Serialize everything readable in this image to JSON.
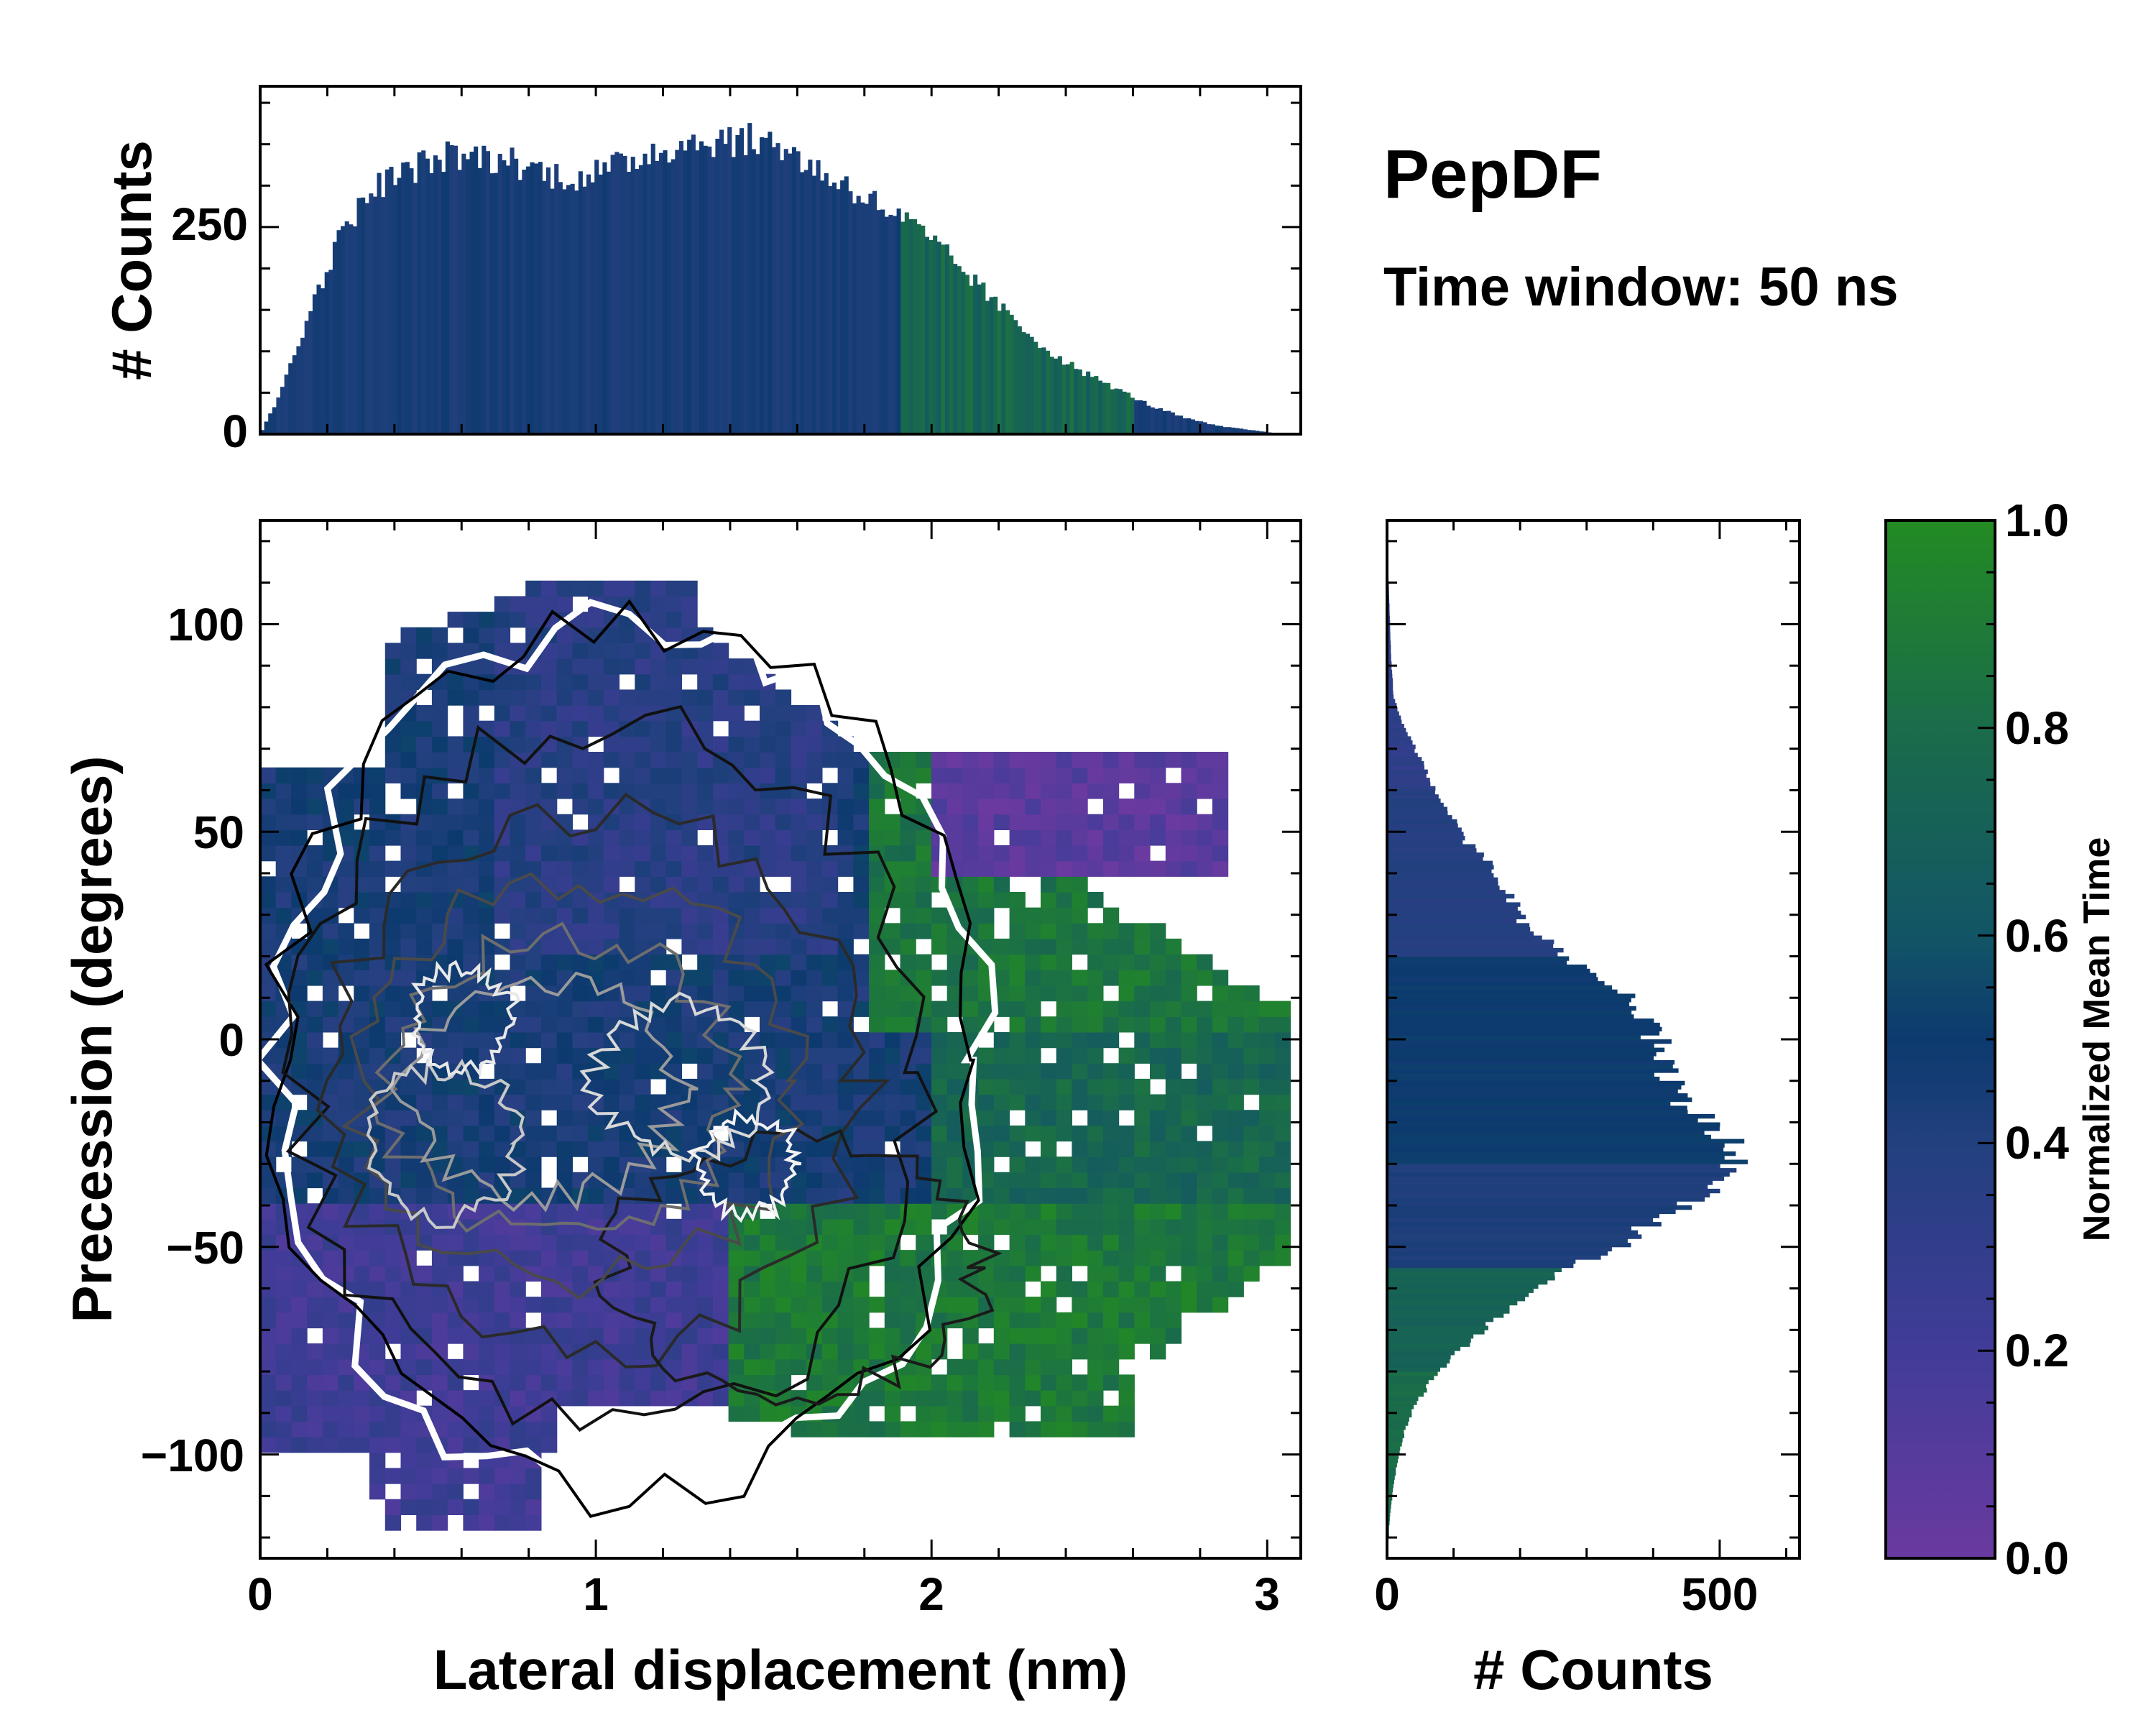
{
  "title": "PepDF",
  "subtitle": "Time window: 50 ns",
  "colors": {
    "purple": "#6a3aa0",
    "navy": "#0c3a6e",
    "blue": "#22407e",
    "green": "#238b23",
    "background": "#ffffff"
  },
  "chart_data": [
    {
      "type": "heatmap",
      "name": "main",
      "xlabel": "Lateral displacement (nm)",
      "ylabel": "Precession (degrees)",
      "xlim": [
        0,
        3.1
      ],
      "ylim": [
        -125,
        125
      ],
      "xticks": [
        0,
        1,
        2,
        3
      ],
      "xtick_labels": [
        "0",
        "1",
        "2",
        "3"
      ],
      "yticks": [
        -100,
        -50,
        0,
        50,
        100
      ],
      "ytick_labels": [
        "−100",
        "−50",
        "0",
        "50",
        "100"
      ],
      "contours": "black-to-white density contour lines overlaid"
    },
    {
      "type": "bar",
      "name": "top-histogram",
      "ylabel": "# Counts",
      "ylim": [
        0,
        420
      ],
      "yticks": [
        0,
        250
      ],
      "ytick_labels": [
        "0",
        "250"
      ],
      "xlim": [
        0,
        3.1
      ],
      "x": [
        0.05,
        0.15,
        0.25,
        0.35,
        0.45,
        0.55,
        0.65,
        0.75,
        0.85,
        0.95,
        1.05,
        1.15,
        1.25,
        1.35,
        1.45,
        1.55,
        1.65,
        1.75,
        1.85,
        1.95,
        2.05,
        2.15,
        2.25,
        2.35,
        2.45,
        2.55,
        2.65,
        2.75,
        2.85,
        2.95
      ],
      "values": [
        40,
        150,
        250,
        300,
        320,
        335,
        335,
        330,
        315,
        310,
        320,
        340,
        350,
        355,
        355,
        350,
        320,
        300,
        275,
        250,
        215,
        175,
        135,
        100,
        75,
        55,
        35,
        20,
        10,
        5
      ]
    },
    {
      "type": "bar",
      "name": "right-histogram",
      "orientation": "horizontal",
      "xlabel": "# Counts",
      "xlim": [
        0,
        620
      ],
      "xticks": [
        0,
        500
      ],
      "xtick_labels": [
        "0",
        "500"
      ],
      "ylim": [
        -125,
        125
      ],
      "y": [
        -117.5,
        -112.5,
        -107.5,
        -102.5,
        -97.5,
        -92.5,
        -87.5,
        -82.5,
        -77.5,
        -72.5,
        -67.5,
        -62.5,
        -57.5,
        -52.5,
        -47.5,
        -42.5,
        -37.5,
        -32.5,
        -27.5,
        -22.5,
        -17.5,
        -12.5,
        -7.5,
        -2.5,
        2.5,
        7.5,
        12.5,
        17.5,
        22.5,
        27.5,
        32.5,
        37.5,
        42.5,
        47.5,
        52.5,
        57.5,
        62.5,
        67.5,
        72.5,
        77.5,
        82.5,
        87.5,
        92.5,
        97.5,
        102.5,
        107.5,
        112.5,
        117.5
      ],
      "values": [
        3,
        6,
        10,
        15,
        22,
        30,
        45,
        65,
        95,
        125,
        160,
        200,
        255,
        310,
        370,
        420,
        470,
        510,
        530,
        500,
        460,
        440,
        420,
        410,
        400,
        380,
        340,
        290,
        250,
        210,
        190,
        170,
        150,
        120,
        100,
        80,
        65,
        50,
        35,
        20,
        10,
        8,
        6,
        5,
        4,
        3,
        2,
        2
      ]
    },
    {
      "type": "colorbar",
      "name": "colorbar",
      "label": "Normalized Mean Time",
      "range": [
        0.0,
        1.0
      ],
      "ticks": [
        0.0,
        0.2,
        0.4,
        0.6,
        0.8,
        1.0
      ],
      "tick_labels": [
        "0.0",
        "0.2",
        "0.4",
        "0.6",
        "0.8",
        "1.0"
      ]
    }
  ]
}
